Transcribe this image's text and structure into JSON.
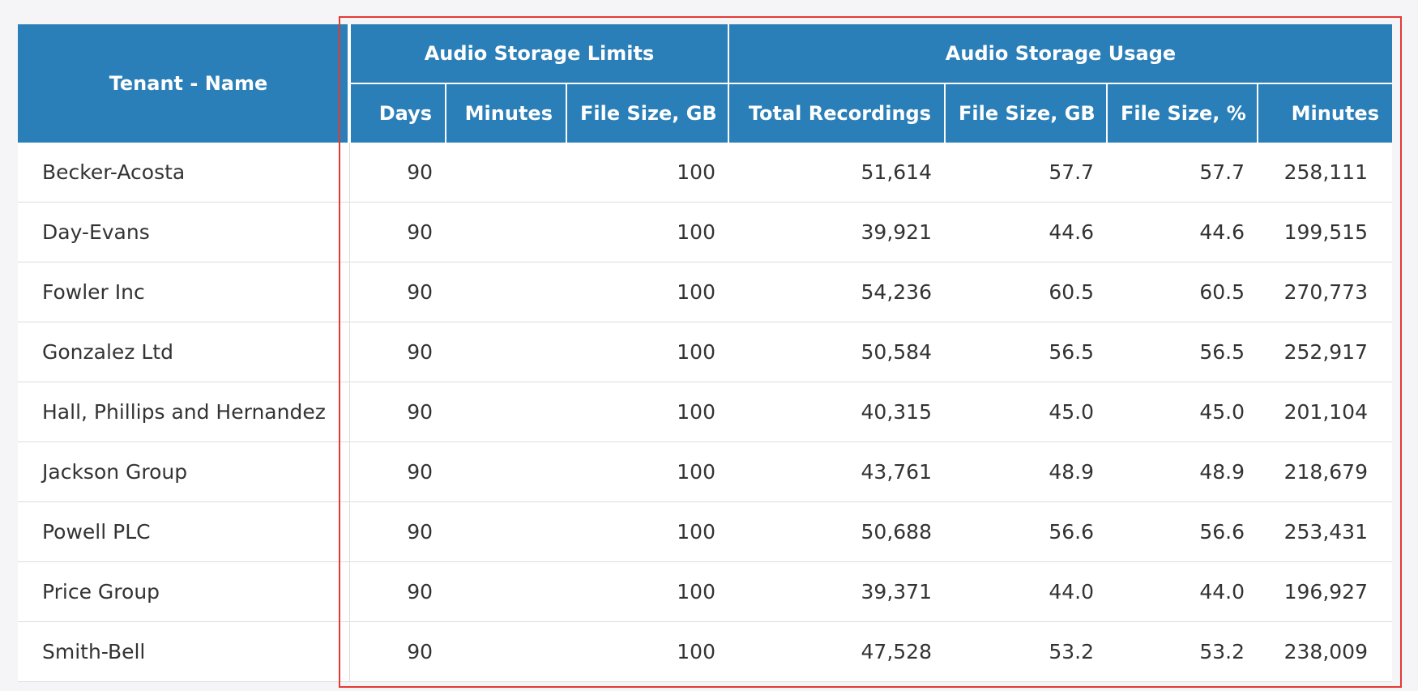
{
  "header": {
    "tenant_label": "Tenant - Name",
    "group_limits": "Audio Storage Limits",
    "group_usage": "Audio Storage Usage",
    "cols": [
      "Days",
      "Minutes",
      "File Size, GB",
      "Total Recordings",
      "File Size, GB",
      "File Size, %",
      "Minutes"
    ]
  },
  "rows": [
    {
      "name": "Becker-Acosta",
      "days": "90",
      "minutes_limit": "",
      "size_limit": "100",
      "recordings": "51,614",
      "size_gb": "57.7",
      "size_pct": "57.7",
      "minutes": "258,111"
    },
    {
      "name": "Day-Evans",
      "days": "90",
      "minutes_limit": "",
      "size_limit": "100",
      "recordings": "39,921",
      "size_gb": "44.6",
      "size_pct": "44.6",
      "minutes": "199,515"
    },
    {
      "name": "Fowler Inc",
      "days": "90",
      "minutes_limit": "",
      "size_limit": "100",
      "recordings": "54,236",
      "size_gb": "60.5",
      "size_pct": "60.5",
      "minutes": "270,773"
    },
    {
      "name": "Gonzalez Ltd",
      "days": "90",
      "minutes_limit": "",
      "size_limit": "100",
      "recordings": "50,584",
      "size_gb": "56.5",
      "size_pct": "56.5",
      "minutes": "252,917"
    },
    {
      "name": "Hall, Phillips and Hernandez",
      "days": "90",
      "minutes_limit": "",
      "size_limit": "100",
      "recordings": "40,315",
      "size_gb": "45.0",
      "size_pct": "45.0",
      "minutes": "201,104"
    },
    {
      "name": "Jackson Group",
      "days": "90",
      "minutes_limit": "",
      "size_limit": "100",
      "recordings": "43,761",
      "size_gb": "48.9",
      "size_pct": "48.9",
      "minutes": "218,679"
    },
    {
      "name": "Powell PLC",
      "days": "90",
      "minutes_limit": "",
      "size_limit": "100",
      "recordings": "50,688",
      "size_gb": "56.6",
      "size_pct": "56.6",
      "minutes": "253,431"
    },
    {
      "name": "Price Group",
      "days": "90",
      "minutes_limit": "",
      "size_limit": "100",
      "recordings": "39,371",
      "size_gb": "44.0",
      "size_pct": "44.0",
      "minutes": "196,927"
    },
    {
      "name": "Smith-Bell",
      "days": "90",
      "minutes_limit": "",
      "size_limit": "100",
      "recordings": "47,528",
      "size_gb": "53.2",
      "size_pct": "53.2",
      "minutes": "238,009"
    }
  ],
  "colors": {
    "header_bg": "#2a7fb8",
    "highlight_border": "#e53935"
  }
}
